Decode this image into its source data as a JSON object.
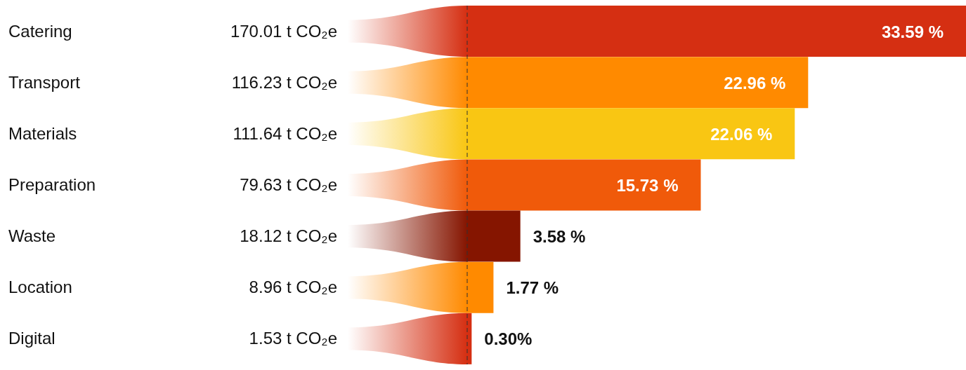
{
  "chart_data": {
    "type": "bar",
    "orientation": "horizontal",
    "categories": [
      "Catering",
      "Transport",
      "Materials",
      "Preparation",
      "Waste",
      "Location",
      "Digital"
    ],
    "values": [
      33.59,
      22.96,
      22.06,
      15.73,
      3.58,
      1.77,
      0.3
    ],
    "colors": [
      "#d52f12",
      "#ff8a00",
      "#f9c613",
      "#f05a0a",
      "#851500",
      "#ff8a00",
      "#d52f12"
    ],
    "value_labels": [
      "33.59 %",
      "22.96 %",
      "22.06 %",
      "15.73 %",
      "3.58 %",
      "1.77 %",
      "0.30%"
    ],
    "annotations": [
      "170.01 t CO₂e",
      "116.23 t CO₂e",
      "111.64 t CO₂e",
      "79.63 t CO₂e",
      "18.12 t CO₂e",
      "8.96 t CO₂e",
      "1.53 t CO₂e"
    ]
  }
}
